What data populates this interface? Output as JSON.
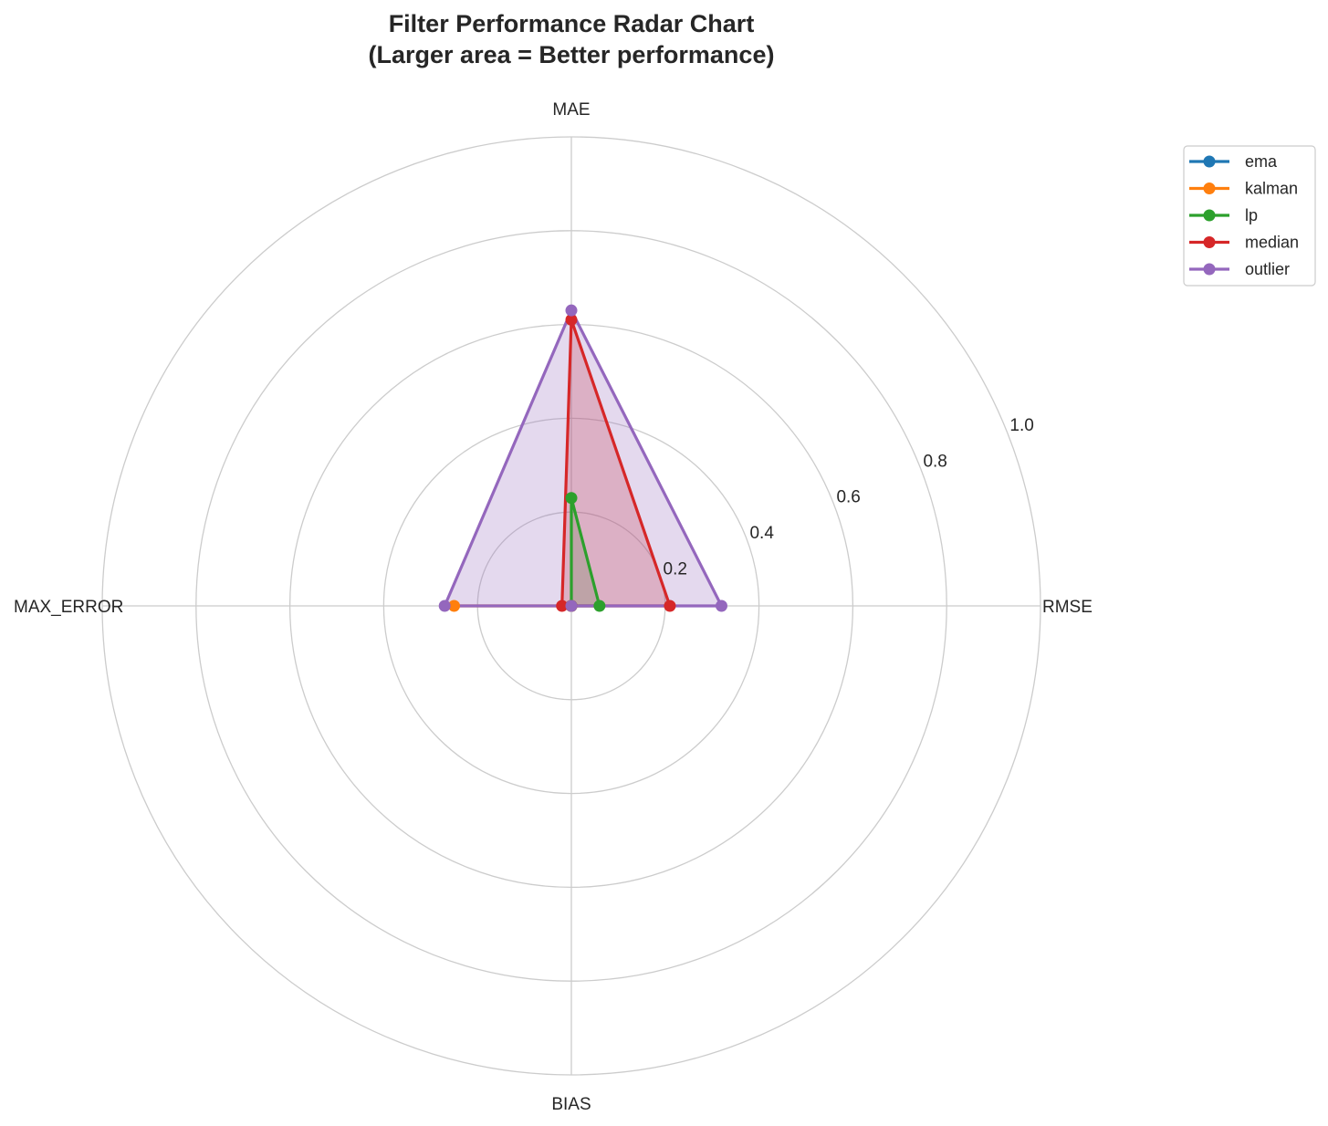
{
  "chart_data": {
    "type": "radar",
    "title": "Filter Performance Radar Chart",
    "subtitle": "(Larger area = Better performance)",
    "axes": [
      "MAE",
      "RMSE",
      "BIAS",
      "MAX_ERROR"
    ],
    "rlim": [
      0,
      1.0
    ],
    "rticks": [
      "0.2",
      "0.4",
      "0.6",
      "0.8",
      "1.0"
    ],
    "rtick_values": [
      0.2,
      0.4,
      0.6,
      0.8,
      1.0
    ],
    "grid": true,
    "legend_position": "top-right outside",
    "series": [
      {
        "name": "ema",
        "color": "#1f77b4",
        "values": [
          0.0,
          0.0,
          0.0,
          0.0
        ]
      },
      {
        "name": "kalman",
        "color": "#ff7f0e",
        "values": [
          0.0,
          0.0,
          0.0,
          0.25
        ]
      },
      {
        "name": "lp",
        "color": "#2ca02c",
        "values": [
          0.23,
          0.06,
          0.0,
          0.0
        ]
      },
      {
        "name": "median",
        "color": "#d62728",
        "values": [
          0.61,
          0.21,
          0.0,
          0.02
        ]
      },
      {
        "name": "outlier",
        "color": "#9467bd",
        "values": [
          0.63,
          0.32,
          0.0,
          0.27
        ]
      }
    ]
  }
}
